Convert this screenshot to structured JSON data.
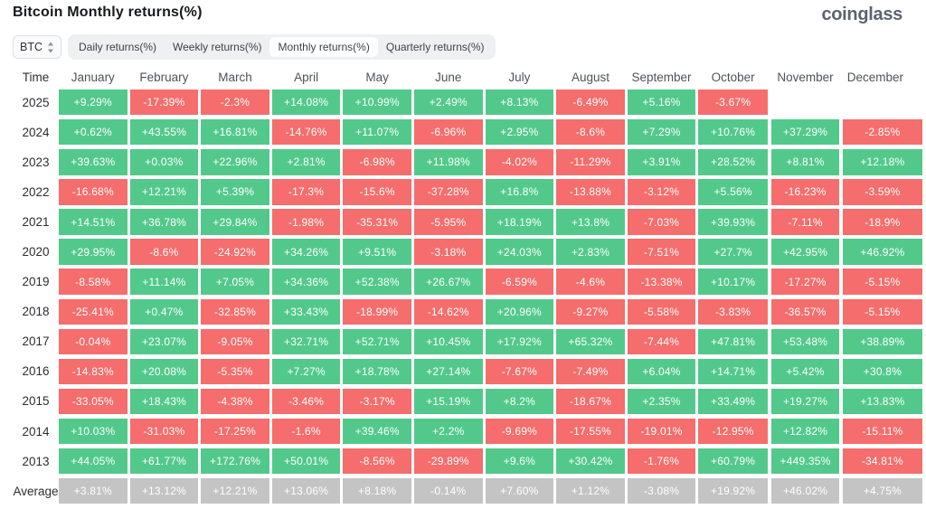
{
  "header": {
    "title": "Bitcoin Monthly returns(%)",
    "logo": "coinglass"
  },
  "controls": {
    "coin": "BTC",
    "tabs": [
      {
        "label": "Daily returns(%)",
        "active": false
      },
      {
        "label": "Weekly returns(%)",
        "active": false
      },
      {
        "label": "Monthly returns(%)",
        "active": true
      },
      {
        "label": "Quarterly returns(%)",
        "active": false
      }
    ]
  },
  "table": {
    "time_header": "Time",
    "months": [
      "January",
      "February",
      "March",
      "April",
      "May",
      "June",
      "July",
      "August",
      "September",
      "October",
      "November",
      "December"
    ],
    "rows": [
      {
        "time": "2025",
        "values": [
          "+9.29%",
          "-17.39%",
          "-2.3%",
          "+14.08%",
          "+10.99%",
          "+2.49%",
          "+8.13%",
          "-6.49%",
          "+5.16%",
          "-3.67%",
          "",
          ""
        ]
      },
      {
        "time": "2024",
        "values": [
          "+0.62%",
          "+43.55%",
          "+16.81%",
          "-14.76%",
          "+11.07%",
          "-6.96%",
          "+2.95%",
          "-8.6%",
          "+7.29%",
          "+10.76%",
          "+37.29%",
          "-2.85%"
        ]
      },
      {
        "time": "2023",
        "values": [
          "+39.63%",
          "+0.03%",
          "+22.96%",
          "+2.81%",
          "-6.98%",
          "+11.98%",
          "-4.02%",
          "-11.29%",
          "+3.91%",
          "+28.52%",
          "+8.81%",
          "+12.18%"
        ]
      },
      {
        "time": "2022",
        "values": [
          "-16.68%",
          "+12.21%",
          "+5.39%",
          "-17.3%",
          "-15.6%",
          "-37.28%",
          "+16.8%",
          "-13.88%",
          "-3.12%",
          "+5.56%",
          "-16.23%",
          "-3.59%"
        ]
      },
      {
        "time": "2021",
        "values": [
          "+14.51%",
          "+36.78%",
          "+29.84%",
          "-1.98%",
          "-35.31%",
          "-5.95%",
          "+18.19%",
          "+13.8%",
          "-7.03%",
          "+39.93%",
          "-7.11%",
          "-18.9%"
        ]
      },
      {
        "time": "2020",
        "values": [
          "+29.95%",
          "-8.6%",
          "-24.92%",
          "+34.26%",
          "+9.51%",
          "-3.18%",
          "+24.03%",
          "+2.83%",
          "-7.51%",
          "+27.7%",
          "+42.95%",
          "+46.92%"
        ]
      },
      {
        "time": "2019",
        "values": [
          "-8.58%",
          "+11.14%",
          "+7.05%",
          "+34.36%",
          "+52.38%",
          "+26.67%",
          "-6.59%",
          "-4.6%",
          "-13.38%",
          "+10.17%",
          "-17.27%",
          "-5.15%"
        ]
      },
      {
        "time": "2018",
        "values": [
          "-25.41%",
          "+0.47%",
          "-32.85%",
          "+33.43%",
          "-18.99%",
          "-14.62%",
          "+20.96%",
          "-9.27%",
          "-5.58%",
          "-3.83%",
          "-36.57%",
          "-5.15%"
        ]
      },
      {
        "time": "2017",
        "values": [
          "-0.04%",
          "+23.07%",
          "-9.05%",
          "+32.71%",
          "+52.71%",
          "+10.45%",
          "+17.92%",
          "+65.32%",
          "-7.44%",
          "+47.81%",
          "+53.48%",
          "+38.89%"
        ]
      },
      {
        "time": "2016",
        "values": [
          "-14.83%",
          "+20.08%",
          "-5.35%",
          "+7.27%",
          "+18.78%",
          "+27.14%",
          "-7.67%",
          "-7.49%",
          "+6.04%",
          "+14.71%",
          "+5.42%",
          "+30.8%"
        ]
      },
      {
        "time": "2015",
        "values": [
          "-33.05%",
          "+18.43%",
          "-4.38%",
          "-3.46%",
          "-3.17%",
          "+15.19%",
          "+8.2%",
          "-18.67%",
          "+2.35%",
          "+33.49%",
          "+19.27%",
          "+13.83%"
        ]
      },
      {
        "time": "2014",
        "values": [
          "+10.03%",
          "-31.03%",
          "-17.25%",
          "-1.6%",
          "+39.46%",
          "+2.2%",
          "-9.69%",
          "-17.55%",
          "-19.01%",
          "-12.95%",
          "+12.82%",
          "-15.11%"
        ]
      },
      {
        "time": "2013",
        "values": [
          "+44.05%",
          "+61.77%",
          "+172.76%",
          "+50.01%",
          "-8.56%",
          "-29.89%",
          "+9.6%",
          "+30.42%",
          "-1.76%",
          "+60.79%",
          "+449.35%",
          "-34.81%"
        ]
      },
      {
        "time": "Average",
        "values": [
          "+3.81%",
          "+13.12%",
          "+12.21%",
          "+13.06%",
          "+8.18%",
          "-0.14%",
          "+7.60%",
          "+1.12%",
          "-3.08%",
          "+19.92%",
          "+46.02%",
          "+4.75%"
        ]
      }
    ]
  },
  "colors": {
    "positive": "#52c98b",
    "negative": "#f56d6d",
    "average": "#c4c4c4",
    "cell_text": "#ffffff"
  }
}
